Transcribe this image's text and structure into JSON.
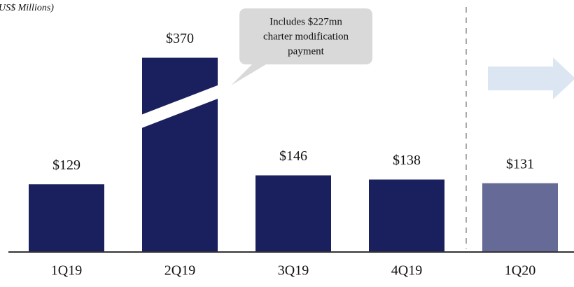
{
  "chart_data": {
    "type": "bar",
    "subtitle": "US$ Millions)",
    "categories": [
      "1Q19",
      "2Q19",
      "3Q19",
      "4Q19",
      "1Q20"
    ],
    "values": [
      129,
      370,
      146,
      138,
      131
    ],
    "value_labels": [
      "$129",
      "$370",
      "$146",
      "$138",
      "$131"
    ],
    "colors": [
      "#1a1f5e",
      "#1a1f5e",
      "#1a1f5e",
      "#1a1f5e",
      "#666a96"
    ],
    "annotation": [
      "Includes $227mn",
      "charter modification",
      "payment"
    ]
  }
}
